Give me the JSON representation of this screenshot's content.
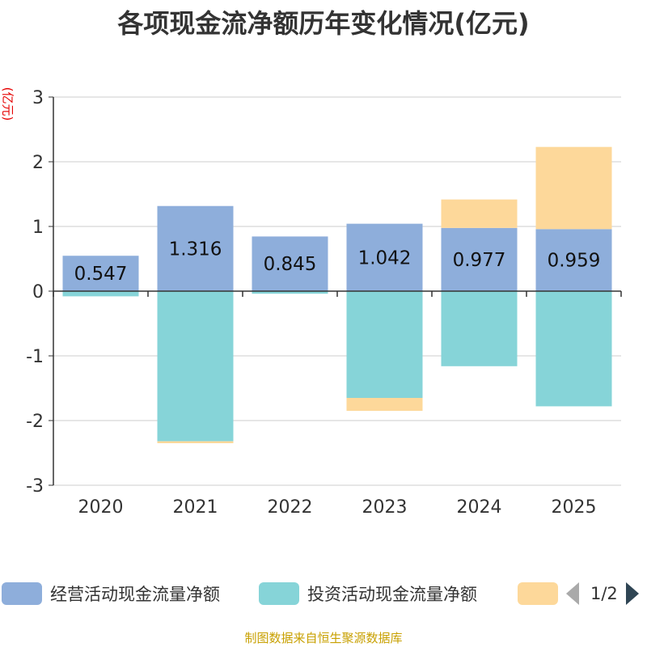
{
  "chart_data": {
    "type": "bar",
    "stacked": true,
    "title": "各项现金流净额历年变化情况(亿元)",
    "ylabel": "(亿元)",
    "ylim": [
      -3,
      3
    ],
    "yticks": [
      3,
      2,
      1,
      0,
      -1,
      -2,
      -3
    ],
    "categories": [
      "2020",
      "2021",
      "2022",
      "2023",
      "2024",
      "2025"
    ],
    "series": [
      {
        "name": "经营活动现金流量净额",
        "color": "#8eaedb",
        "values": [
          0.547,
          1.316,
          0.845,
          1.042,
          0.977,
          0.959
        ],
        "labels": [
          "0.547",
          "1.316",
          "0.845",
          "1.042",
          "0.977",
          "0.959"
        ]
      },
      {
        "name": "投资活动现金流量净额",
        "color": "#86d4d8",
        "values": [
          -0.08,
          -2.32,
          -0.04,
          -1.65,
          -1.16,
          -1.78
        ]
      },
      {
        "name": "",
        "color": "#fdd89a",
        "values": [
          0,
          -0.03,
          0,
          -0.2,
          0.44,
          1.27
        ]
      }
    ],
    "legend_position": "bottom",
    "grid": true
  },
  "legend": {
    "items": [
      {
        "label": "经营活动现金流量净额",
        "color": "#8eaedb"
      },
      {
        "label": "投资活动现金流量净额",
        "color": "#86d4d8"
      },
      {
        "label": "",
        "color": "#fdd89a"
      }
    ],
    "page_text": "1/2"
  },
  "source_note": "制图数据来自恒生聚源数据库"
}
